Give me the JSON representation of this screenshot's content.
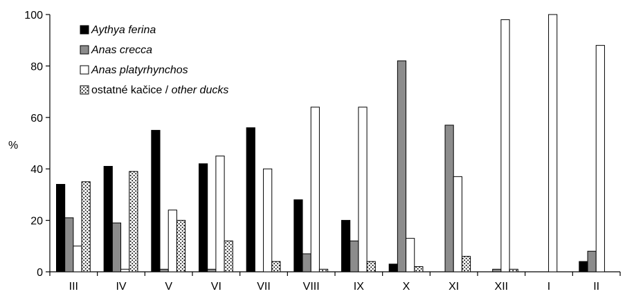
{
  "chart_data": {
    "type": "bar",
    "title": "",
    "xlabel": "",
    "ylabel": "%",
    "ylim": [
      0,
      100
    ],
    "yticks": [
      "0",
      "20",
      "40",
      "60",
      "80",
      "100"
    ],
    "grid": false,
    "legend_position": "top-left",
    "categories": [
      "III",
      "IV",
      "V",
      "VI",
      "VII",
      "VIII",
      "IX",
      "X",
      "XI",
      "XII",
      "I",
      "II"
    ],
    "series": [
      {
        "name": "Aythya ferina",
        "style": "solid-black",
        "color": "#000000",
        "values": [
          34,
          41,
          55,
          42,
          56,
          28,
          20,
          3,
          0,
          0,
          0,
          4
        ]
      },
      {
        "name": "Anas crecca",
        "style": "solid-gray",
        "color": "#8c8c8c",
        "values": [
          21,
          19,
          1,
          1,
          0,
          7,
          12,
          82,
          57,
          1,
          0,
          8
        ]
      },
      {
        "name": "Anas platyrhynchos",
        "style": "white",
        "color": "#ffffff",
        "values": [
          10,
          1,
          24,
          45,
          40,
          64,
          64,
          13,
          37,
          98,
          100,
          88
        ]
      },
      {
        "name_plain": "ostatné kačice / ",
        "name_italic": "other ducks",
        "style": "dotted",
        "color": "#ffffff",
        "values": [
          35,
          39,
          20,
          12,
          4,
          1,
          4,
          2,
          6,
          1,
          0,
          0
        ]
      }
    ]
  }
}
